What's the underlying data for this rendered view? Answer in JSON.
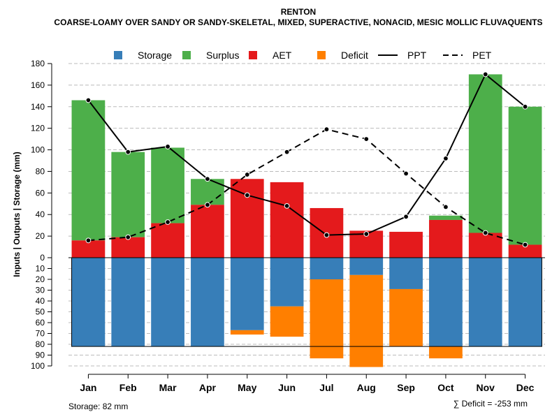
{
  "chart_data": {
    "type": "bar",
    "title": "RENTON",
    "subtitle": "COARSE-LOAMY OVER SANDY OR SANDY-SKELETAL, MIXED, SUPERACTIVE, NONACID, MESIC MOLLIC FLUVAQUENTS",
    "ylabel": "Inputs | Outputs | Storage    (mm)",
    "categories": [
      "Jan",
      "Feb",
      "Mar",
      "Apr",
      "May",
      "Jun",
      "Jul",
      "Aug",
      "Sep",
      "Oct",
      "Nov",
      "Dec"
    ],
    "ylim_upper": [
      0,
      180
    ],
    "ylim_lower": [
      0,
      100
    ],
    "yticks_upper": [
      0,
      20,
      40,
      60,
      80,
      100,
      120,
      140,
      160,
      180
    ],
    "yticks_lower": [
      10,
      20,
      30,
      40,
      50,
      60,
      70,
      80,
      90,
      100
    ],
    "grid": true,
    "legend": [
      {
        "label": "Storage",
        "type": "box",
        "color": "#377EB8"
      },
      {
        "label": "Surplus",
        "type": "box",
        "color": "#4DAF4A"
      },
      {
        "label": "AET",
        "type": "box",
        "color": "#E41A1C"
      },
      {
        "label": "Deficit",
        "type": "box",
        "color": "#FF7F00"
      },
      {
        "label": "PPT",
        "type": "solid-line",
        "color": "#000000"
      },
      {
        "label": "PET",
        "type": "dashed-line",
        "color": "#000000"
      }
    ],
    "colors": {
      "storage": "#377EB8",
      "surplus": "#4DAF4A",
      "aet": "#E41A1C",
      "deficit": "#FF7F00",
      "line": "#000000",
      "grid": "#bbbbbb"
    },
    "series": [
      {
        "name": "AET",
        "values": [
          16,
          19,
          32,
          49,
          73,
          70,
          46,
          25,
          24,
          35,
          23,
          12
        ]
      },
      {
        "name": "Surplus",
        "values": [
          130,
          79,
          70,
          24,
          0,
          0,
          0,
          0,
          0,
          4,
          147,
          128
        ]
      },
      {
        "name": "Storage",
        "values": [
          82,
          82,
          82,
          82,
          67,
          45,
          20,
          16,
          29,
          82,
          82,
          82
        ]
      },
      {
        "name": "Deficit",
        "values": [
          0,
          0,
          0,
          0,
          4,
          28,
          73,
          85,
          53,
          11,
          0,
          0
        ]
      },
      {
        "name": "PPT",
        "values": [
          146,
          98,
          103,
          73,
          58,
          48,
          21,
          22,
          38,
          92,
          170,
          140
        ]
      },
      {
        "name": "PET",
        "values": [
          16,
          19,
          33,
          49,
          77,
          98,
          119,
          110,
          78,
          47,
          23,
          12
        ]
      }
    ],
    "storage_capacity": 82,
    "footer_left": "Storage: 82 mm",
    "footer_right": "∑ Deficit = -253 mm"
  }
}
